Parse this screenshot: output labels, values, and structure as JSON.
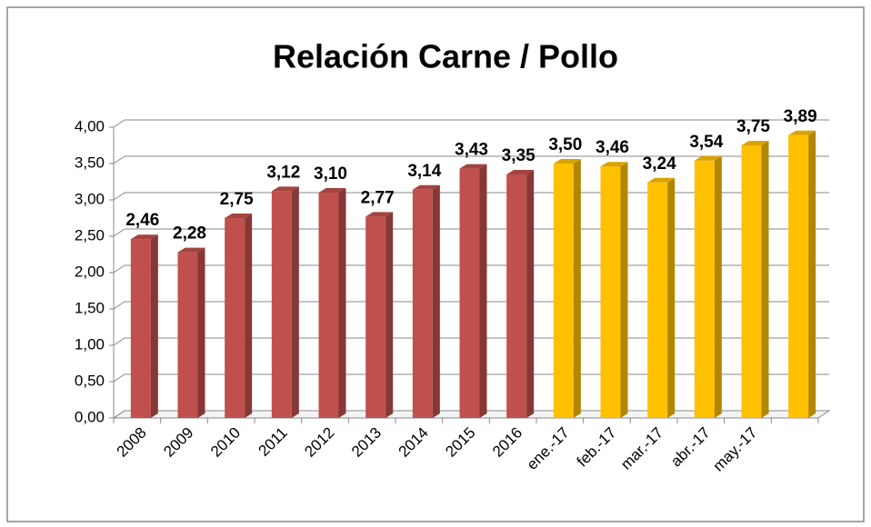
{
  "chart_data": {
    "type": "bar3d",
    "title": "Relación Carne / Pollo",
    "categories": [
      "2008",
      "2009",
      "2010",
      "2011",
      "2012",
      "2013",
      "2014",
      "2015",
      "2016",
      "ene.-17",
      "feb.-17",
      "mar.-17",
      "abr.-17",
      "may.-17",
      null
    ],
    "values": [
      2.46,
      2.28,
      2.75,
      3.12,
      3.1,
      2.77,
      3.14,
      3.43,
      3.35,
      3.5,
      3.46,
      3.24,
      3.54,
      3.75,
      3.89
    ],
    "value_labels": [
      "2,46",
      "2,28",
      "2,75",
      "3,12",
      "3,10",
      "2,77",
      "3,14",
      "3,43",
      "3,35",
      "3,50",
      "3,46",
      "3,24",
      "3,54",
      "3,75",
      "3,89"
    ],
    "colors": [
      "#c0504d",
      "#c0504d",
      "#c0504d",
      "#c0504d",
      "#c0504d",
      "#c0504d",
      "#c0504d",
      "#c0504d",
      "#c0504d",
      "#ffc000",
      "#ffc000",
      "#ffc000",
      "#ffc000",
      "#ffc000",
      "#ffc000"
    ],
    "ylim": [
      0,
      4
    ],
    "yticks": [
      {
        "value": 0,
        "label": "0,00"
      },
      {
        "value": 0.5,
        "label": "0,50"
      },
      {
        "value": 1,
        "label": "1,00"
      },
      {
        "value": 1.5,
        "label": "1,50"
      },
      {
        "value": 2,
        "label": "2,00"
      },
      {
        "value": 2.5,
        "label": "2,50"
      },
      {
        "value": 3,
        "label": "3,00"
      },
      {
        "value": 3.5,
        "label": "3,50"
      },
      {
        "value": 4,
        "label": "4,00"
      }
    ],
    "grid": true
  }
}
